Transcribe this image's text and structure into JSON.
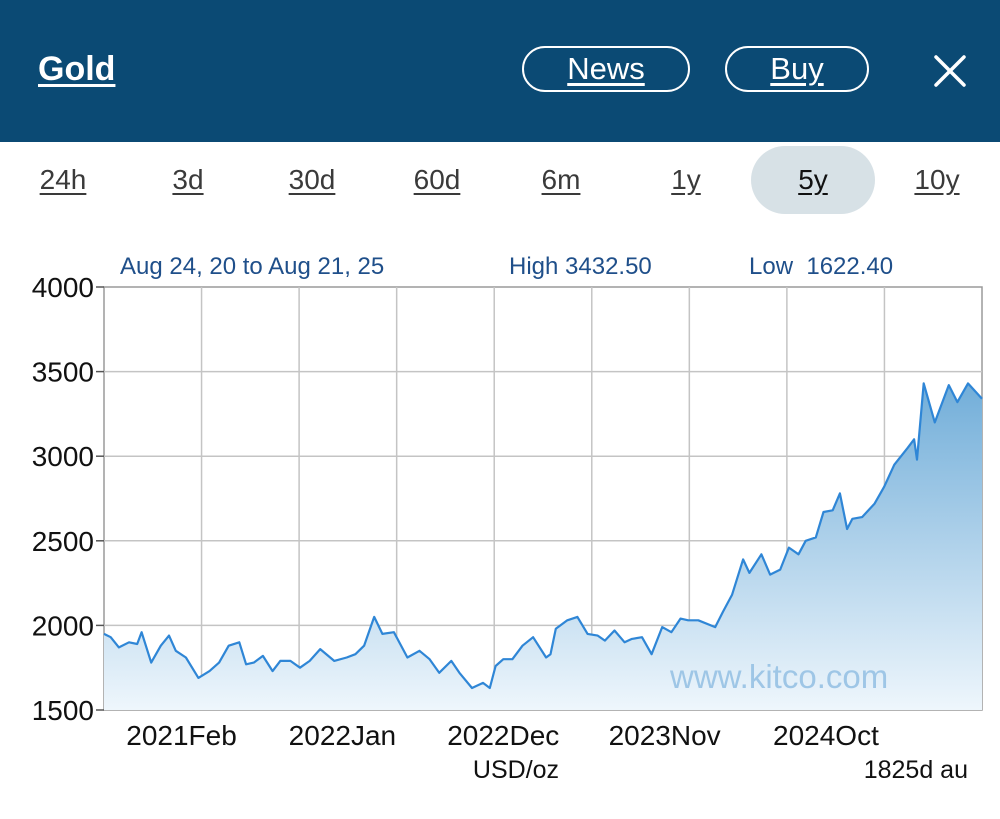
{
  "header": {
    "title": "Gold",
    "news_label": "News",
    "buy_label": "Buy",
    "bg_color": "#0b4a74"
  },
  "tabs": [
    {
      "label": "24h",
      "active": false
    },
    {
      "label": "3d",
      "active": false
    },
    {
      "label": "30d",
      "active": false
    },
    {
      "label": "60d",
      "active": false
    },
    {
      "label": "6m",
      "active": false
    },
    {
      "label": "1y",
      "active": false
    },
    {
      "label": "5y",
      "active": true
    },
    {
      "label": "10y",
      "active": false
    }
  ],
  "chart_data": {
    "type": "area",
    "range_text": "Aug 24, 20 to Aug 21, 25",
    "high_text": "High 3432.50",
    "low_text": "Low  1622.40",
    "unit_label": "USD/oz",
    "period_label": "1825d au",
    "watermark": "www.kitco.com",
    "ylim": [
      1500,
      4000
    ],
    "yticks": [
      1500,
      2000,
      2500,
      3000,
      3500,
      4000
    ],
    "xlim": [
      "2020-08-24",
      "2025-08-21"
    ],
    "xticks": [
      {
        "date": "2021-02-01",
        "label": "2021Feb"
      },
      {
        "date": "2022-01-01",
        "label": "2022Jan"
      },
      {
        "date": "2022-12-01",
        "label": "2022Dec"
      },
      {
        "date": "2023-11-01",
        "label": "2023Nov"
      },
      {
        "date": "2024-10-01",
        "label": "2024Oct"
      }
    ],
    "grid": true,
    "line_color": "#2f86d6",
    "fill_top_color": "#72aed9",
    "fill_bottom_color": "#eef6fc",
    "series": [
      {
        "x": [
          "2020-08-24",
          "2020-09-07",
          "2020-09-24",
          "2020-10-15",
          "2020-11-01",
          "2020-11-10",
          "2020-11-30",
          "2020-12-20",
          "2021-01-06",
          "2021-01-20",
          "2021-02-10",
          "2021-03-08",
          "2021-03-31",
          "2021-04-20",
          "2021-05-10",
          "2021-06-01",
          "2021-06-15",
          "2021-07-01",
          "2021-07-20",
          "2021-08-09",
          "2021-08-25",
          "2021-09-15",
          "2021-10-05",
          "2021-10-25",
          "2021-11-16",
          "2021-12-15",
          "2022-01-10",
          "2022-01-28",
          "2022-02-15",
          "2022-03-08",
          "2022-03-25",
          "2022-04-18",
          "2022-05-16",
          "2022-06-10",
          "2022-07-01",
          "2022-07-21",
          "2022-08-15",
          "2022-09-01",
          "2022-09-27",
          "2022-10-20",
          "2022-11-03",
          "2022-11-15",
          "2022-12-01",
          "2022-12-20",
          "2023-01-10",
          "2023-02-01",
          "2023-02-28",
          "2023-03-09",
          "2023-03-20",
          "2023-04-13",
          "2023-05-04",
          "2023-05-25",
          "2023-06-15",
          "2023-06-30",
          "2023-07-20",
          "2023-08-10",
          "2023-08-25",
          "2023-09-15",
          "2023-10-05",
          "2023-10-27",
          "2023-11-15",
          "2023-12-04",
          "2023-12-20",
          "2024-01-10",
          "2024-02-14",
          "2024-03-01",
          "2024-03-20",
          "2024-04-12",
          "2024-04-25",
          "2024-05-20",
          "2024-06-07",
          "2024-06-28",
          "2024-07-16",
          "2024-08-05",
          "2024-08-20",
          "2024-09-10",
          "2024-09-26",
          "2024-10-15",
          "2024-10-30",
          "2024-11-14",
          "2024-11-25",
          "2024-12-15",
          "2025-01-10",
          "2025-01-30",
          "2025-02-20",
          "2025-03-20",
          "2025-04-02",
          "2025-04-08",
          "2025-04-22",
          "2025-05-15",
          "2025-06-13",
          "2025-07-01",
          "2025-07-23",
          "2025-08-21"
        ],
        "y": [
          1950,
          1930,
          1870,
          1900,
          1890,
          1960,
          1780,
          1880,
          1940,
          1850,
          1810,
          1690,
          1730,
          1780,
          1880,
          1900,
          1770,
          1780,
          1820,
          1730,
          1790,
          1790,
          1750,
          1790,
          1860,
          1790,
          1810,
          1830,
          1880,
          2050,
          1950,
          1960,
          1810,
          1850,
          1800,
          1720,
          1790,
          1720,
          1630,
          1660,
          1630,
          1760,
          1800,
          1800,
          1880,
          1930,
          1810,
          1830,
          1980,
          2030,
          2050,
          1950,
          1940,
          1910,
          1970,
          1900,
          1920,
          1930,
          1830,
          1990,
          1960,
          2040,
          2030,
          2030,
          1990,
          2080,
          2180,
          2390,
          2310,
          2420,
          2300,
          2330,
          2460,
          2420,
          2500,
          2520,
          2670,
          2680,
          2780,
          2570,
          2630,
          2640,
          2720,
          2820,
          2950,
          3050,
          3100,
          2980,
          3430,
          3200,
          3420,
          3320,
          3430,
          3340
        ]
      }
    ]
  }
}
